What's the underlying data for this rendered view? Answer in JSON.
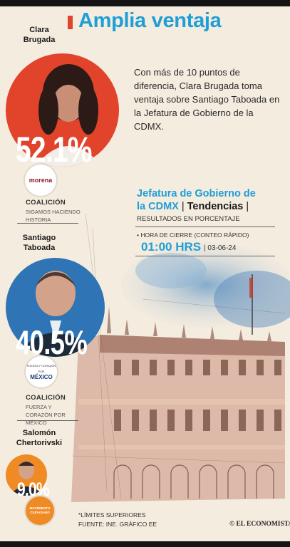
{
  "header": {
    "title": "Amplia ventaja",
    "intro": "Con más de 10 puntos de diferencia, Clara Brugada toma ventaja sobre Santiago Taboada en la Jefatura de Gobierno de la CDMX."
  },
  "results_box": {
    "title_line1": "Jefatura de Gobierno de",
    "title_line2": "la CDMX",
    "tag": "Tendencias",
    "subtitle": "RESULTADOS EN PORCENTAJE",
    "close_label": "HORA DE CIERRE (CONTEO RÁPIDO)",
    "time": "01:00 HRS",
    "date": "03-06-24"
  },
  "chart_data": {
    "type": "bar",
    "title": "Amplia ventaja",
    "unit": "%",
    "categories": [
      "Clara Brugada",
      "Santiago Taboada",
      "Salomón Chertorivski"
    ],
    "values": [
      52.1,
      40.5,
      9.0
    ],
    "value_labels": [
      "52.1%",
      "40.5%",
      "9.0%"
    ],
    "marks": "circles",
    "colors": [
      "#e2432b",
      "#2f74b4",
      "#f08a24"
    ]
  },
  "candidates": [
    {
      "name_line1": "Clara",
      "name_line2": "Brugada",
      "coalition_head": "COALICIÓN",
      "coalition_name": "SIGAMOS HACIENDO HISTORIA",
      "logo_text": "morena",
      "logo_sub": "",
      "icon": "portrait-icon"
    },
    {
      "name_line1": "Santiago",
      "name_line2": "Taboada",
      "coalition_head": "COALICIÓN",
      "coalition_name": "FUERZA Y CORAZÓN POR MÉXICO",
      "logo_text": "MÉXICO",
      "logo_sub": "FUERZA Y CORAZÓN POR",
      "icon": "portrait-icon"
    },
    {
      "name_line1": "Salomón",
      "name_line2": "Chertorivski",
      "coalition_head": "",
      "coalition_name": "",
      "logo_text": "MOVIMIENTO CIUDADANO",
      "logo_sub": "",
      "icon": "portrait-icon"
    }
  ],
  "footer": {
    "note": "*LÍMITES SUPERIORES",
    "source": "FUENTE: INE. GRÁFICO EE",
    "brand": "© EL ECONOMISTA"
  }
}
